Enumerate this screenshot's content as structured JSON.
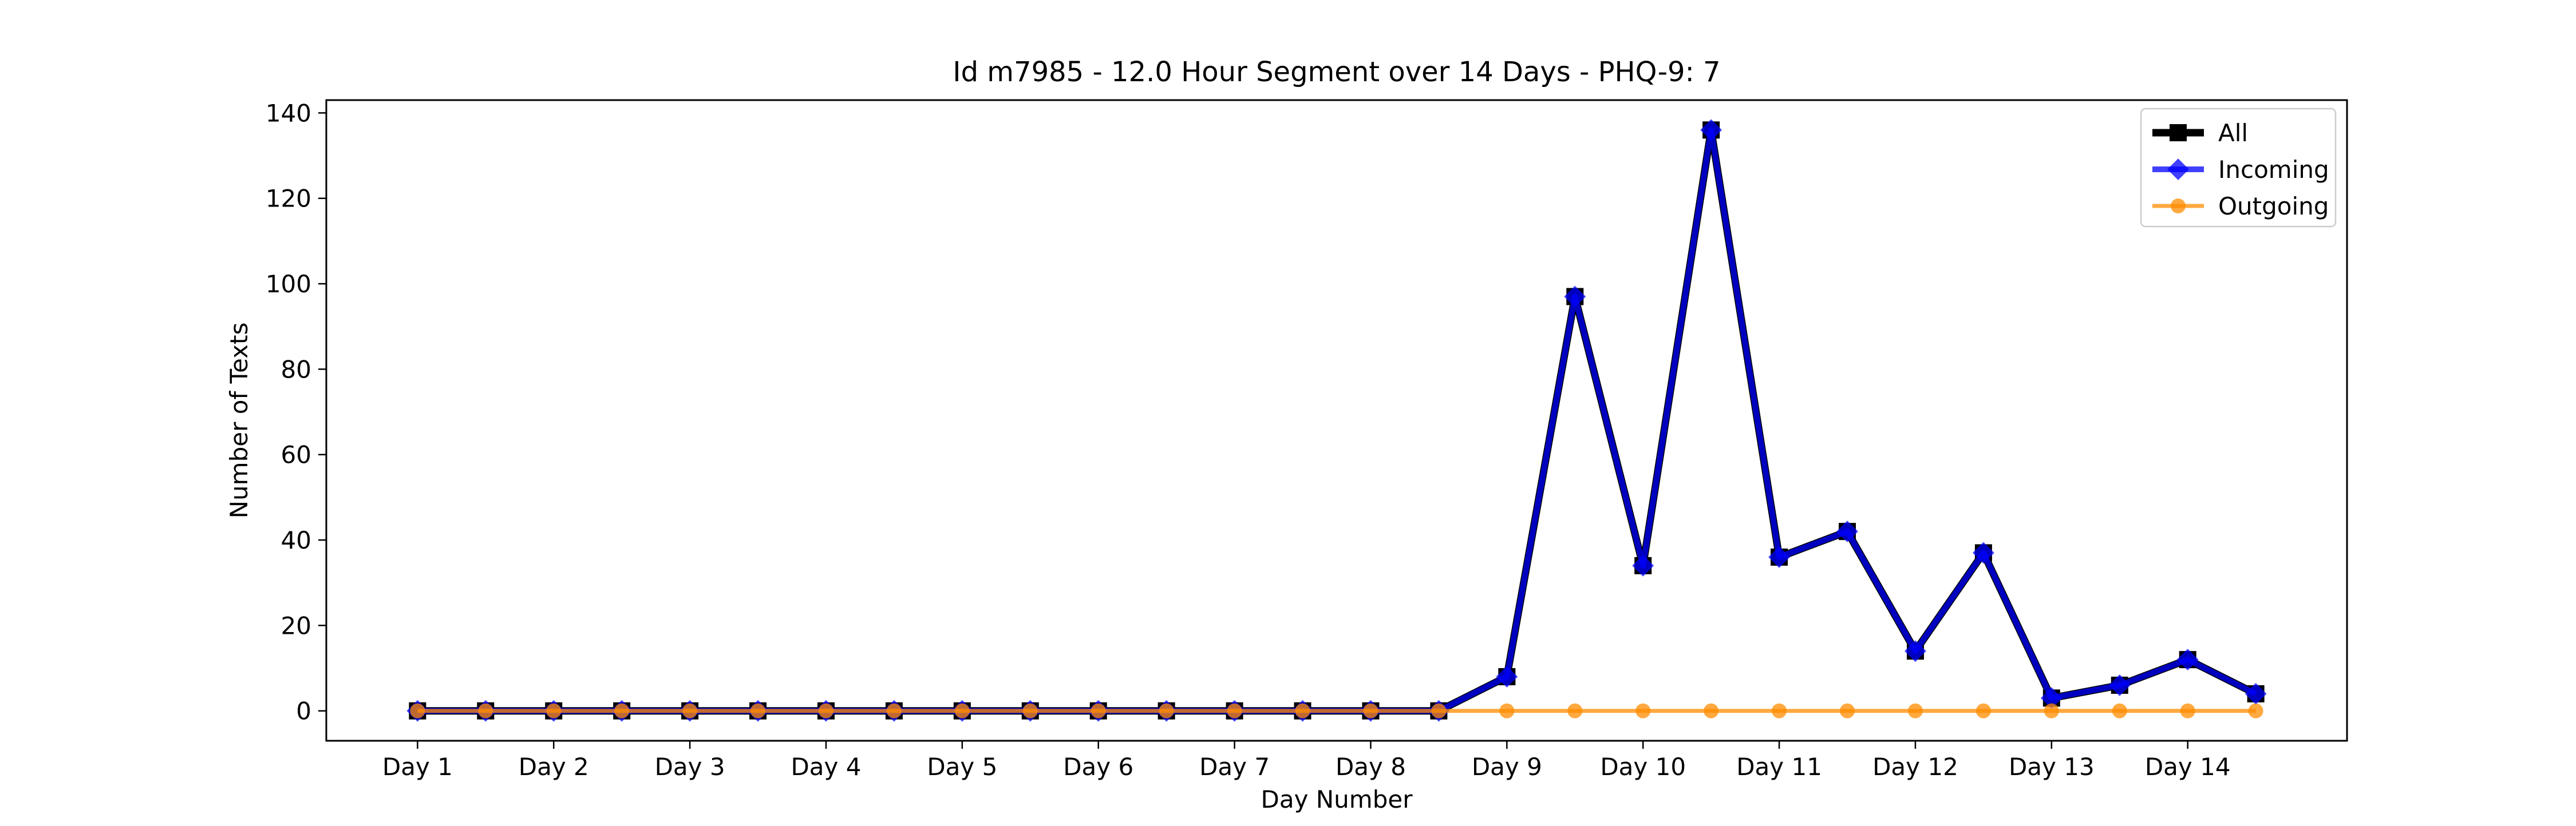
{
  "chart_data": {
    "type": "line",
    "title": "Id m7985 - 12.0 Hour Segment over 14 Days - PHQ-9: 7",
    "xlabel": "Day Number",
    "ylabel": "Number of Texts",
    "categories": [
      "Day 1",
      "Day 2",
      "Day 3",
      "Day 4",
      "Day 5",
      "Day 6",
      "Day 7",
      "Day 8",
      "Day 9",
      "Day 10",
      "Day 11",
      "Day 12",
      "Day 13",
      "Day 14"
    ],
    "x": [
      1,
      1.5,
      2,
      2.5,
      3,
      3.5,
      4,
      4.5,
      5,
      5.5,
      6,
      6.5,
      7,
      7.5,
      8,
      8.5,
      9,
      9.5,
      10,
      10.5,
      11,
      11.5,
      12,
      12.5,
      13,
      13.5,
      14,
      14.5
    ],
    "xlim": [
      0.33,
      15.17
    ],
    "ylim": [
      -7,
      143
    ],
    "yticks": [
      0,
      20,
      40,
      60,
      80,
      100,
      120,
      140
    ],
    "grid": false,
    "legend_position": "top-right",
    "series": [
      {
        "name": "All",
        "color": "#000000",
        "marker": "square",
        "values": [
          0,
          0,
          0,
          0,
          0,
          0,
          0,
          0,
          0,
          0,
          0,
          0,
          0,
          0,
          0,
          0,
          8,
          97,
          34,
          136,
          36,
          42,
          14,
          37,
          3,
          6,
          12,
          4
        ]
      },
      {
        "name": "Incoming",
        "color": "#0000ff",
        "marker": "diamond",
        "values": [
          0,
          0,
          0,
          0,
          0,
          0,
          0,
          0,
          0,
          0,
          0,
          0,
          0,
          0,
          0,
          0,
          8,
          97,
          34,
          136,
          36,
          42,
          14,
          37,
          3,
          6,
          12,
          4
        ]
      },
      {
        "name": "Outgoing",
        "color": "#ff8c00",
        "marker": "circle",
        "values": [
          0,
          0,
          0,
          0,
          0,
          0,
          0,
          0,
          0,
          0,
          0,
          0,
          0,
          0,
          0,
          0,
          0,
          0,
          0,
          0,
          0,
          0,
          0,
          0,
          0,
          0,
          0,
          0
        ]
      }
    ]
  }
}
